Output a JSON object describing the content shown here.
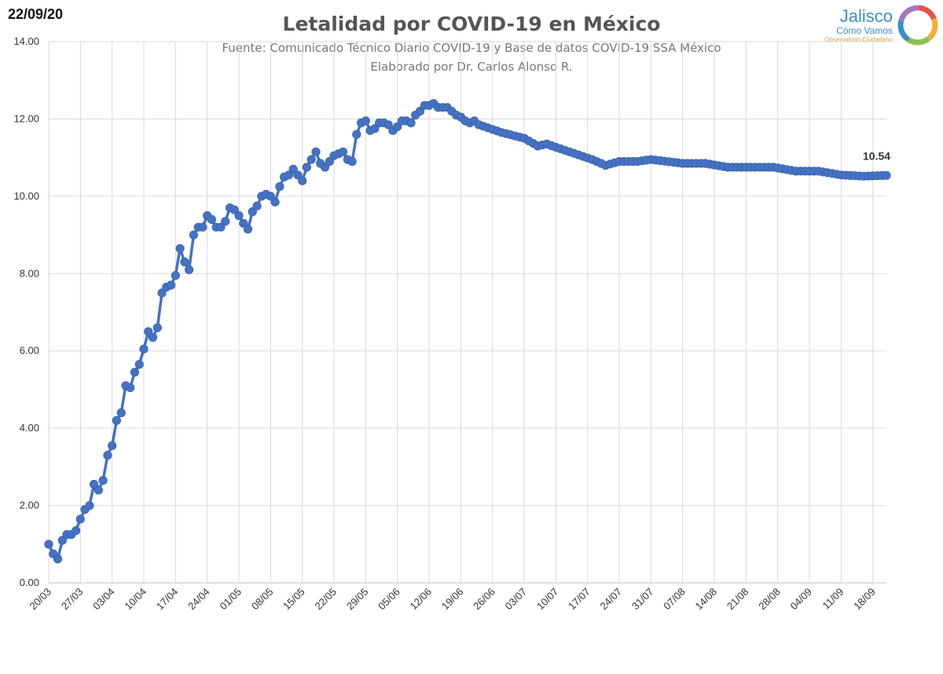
{
  "header": {
    "date": "22/09/20",
    "title": "Letalidad por COVID-19 en México",
    "subtitle_1": "Fuente: Comunicado Técnico Diario COVID-19 y Base de datos COVID-19 SSA México",
    "subtitle_2": "Elaborado por Dr. Carlos Alonso R."
  },
  "logo": {
    "name": "Jalisco",
    "subname": "Cómo Vamos",
    "tagline": "Observatorio Ciudadano",
    "icon": "ring-logo-icon",
    "colors": [
      "#e8524a",
      "#f2b134",
      "#8cc152",
      "#3a8fc7",
      "#a874c2"
    ]
  },
  "chart_data": {
    "type": "line",
    "title": "Letalidad por COVID-19 en México",
    "xlabel": "",
    "ylabel": "",
    "ylim": [
      0,
      14
    ],
    "yticks": [
      "0.00",
      "2.00",
      "4.00",
      "6.00",
      "8.00",
      "10.00",
      "12.00",
      "14.00"
    ],
    "xticks": [
      "20/03",
      "27/03",
      "03/04",
      "10/04",
      "17/04",
      "24/04",
      "01/05",
      "08/05",
      "15/05",
      "22/05",
      "29/05",
      "05/06",
      "12/06",
      "19/06",
      "26/06",
      "03/07",
      "10/07",
      "17/07",
      "24/07",
      "31/07",
      "07/08",
      "14/08",
      "21/08",
      "28/08",
      "04/09",
      "11/09",
      "18/09"
    ],
    "grid": "vertical-and-horizontal",
    "legend": "none",
    "line_color": "#4472c4",
    "end_label": "10.54",
    "anchors": [
      [
        0,
        1.0
      ],
      [
        1,
        0.75
      ],
      [
        2,
        0.62
      ],
      [
        3,
        1.1
      ],
      [
        4,
        1.25
      ],
      [
        5,
        1.25
      ],
      [
        6,
        1.35
      ],
      [
        7,
        1.65
      ],
      [
        8,
        1.9
      ],
      [
        9,
        2.0
      ],
      [
        10,
        2.55
      ],
      [
        11,
        2.4
      ],
      [
        12,
        2.65
      ],
      [
        13,
        3.3
      ],
      [
        14,
        3.55
      ],
      [
        15,
        4.2
      ],
      [
        16,
        4.4
      ],
      [
        17,
        5.1
      ],
      [
        18,
        5.05
      ],
      [
        19,
        5.45
      ],
      [
        20,
        5.65
      ],
      [
        21,
        6.05
      ],
      [
        22,
        6.5
      ],
      [
        23,
        6.35
      ],
      [
        24,
        6.6
      ],
      [
        25,
        7.5
      ],
      [
        26,
        7.65
      ],
      [
        27,
        7.7
      ],
      [
        28,
        7.95
      ],
      [
        29,
        8.65
      ],
      [
        30,
        8.3
      ],
      [
        31,
        8.1
      ],
      [
        32,
        9.0
      ],
      [
        33,
        9.2
      ],
      [
        34,
        9.2
      ],
      [
        35,
        9.5
      ],
      [
        36,
        9.4
      ],
      [
        37,
        9.2
      ],
      [
        38,
        9.2
      ],
      [
        39,
        9.35
      ],
      [
        40,
        9.7
      ],
      [
        41,
        9.65
      ],
      [
        42,
        9.5
      ],
      [
        43,
        9.3
      ],
      [
        44,
        9.15
      ],
      [
        45,
        9.6
      ],
      [
        46,
        9.75
      ],
      [
        47,
        10.0
      ],
      [
        48,
        10.05
      ],
      [
        49,
        10.0
      ],
      [
        50,
        9.85
      ],
      [
        51,
        10.25
      ],
      [
        52,
        10.5
      ],
      [
        53,
        10.55
      ],
      [
        54,
        10.7
      ],
      [
        55,
        10.55
      ],
      [
        56,
        10.4
      ],
      [
        57,
        10.75
      ],
      [
        58,
        10.95
      ],
      [
        59,
        11.15
      ],
      [
        60,
        10.85
      ],
      [
        61,
        10.75
      ],
      [
        62,
        10.9
      ],
      [
        63,
        11.05
      ],
      [
        64,
        11.1
      ],
      [
        65,
        11.15
      ],
      [
        66,
        10.95
      ],
      [
        67,
        10.9
      ],
      [
        68,
        11.6
      ],
      [
        69,
        11.9
      ],
      [
        70,
        11.95
      ],
      [
        71,
        11.7
      ],
      [
        72,
        11.75
      ],
      [
        73,
        11.9
      ],
      [
        74,
        11.9
      ],
      [
        75,
        11.85
      ],
      [
        76,
        11.7
      ],
      [
        77,
        11.8
      ],
      [
        78,
        11.95
      ],
      [
        79,
        11.95
      ],
      [
        80,
        11.9
      ],
      [
        81,
        12.1
      ],
      [
        82,
        12.2
      ],
      [
        83,
        12.35
      ],
      [
        84,
        12.35
      ],
      [
        85,
        12.4
      ],
      [
        86,
        12.3
      ],
      [
        87,
        12.3
      ],
      [
        88,
        12.3
      ],
      [
        89,
        12.2
      ],
      [
        90,
        12.1
      ],
      [
        91,
        12.05
      ],
      [
        92,
        11.95
      ],
      [
        93,
        11.9
      ],
      [
        94,
        11.95
      ],
      [
        95,
        11.85
      ],
      [
        100,
        11.65
      ],
      [
        105,
        11.5
      ],
      [
        108,
        11.3
      ],
      [
        110,
        11.35
      ],
      [
        115,
        11.15
      ],
      [
        120,
        10.95
      ],
      [
        123,
        10.8
      ],
      [
        126,
        10.9
      ],
      [
        130,
        10.9
      ],
      [
        133,
        10.95
      ],
      [
        140,
        10.85
      ],
      [
        145,
        10.85
      ],
      [
        150,
        10.75
      ],
      [
        155,
        10.75
      ],
      [
        160,
        10.75
      ],
      [
        165,
        10.65
      ],
      [
        170,
        10.65
      ],
      [
        175,
        10.55
      ],
      [
        180,
        10.52
      ],
      [
        185,
        10.54
      ]
    ]
  }
}
